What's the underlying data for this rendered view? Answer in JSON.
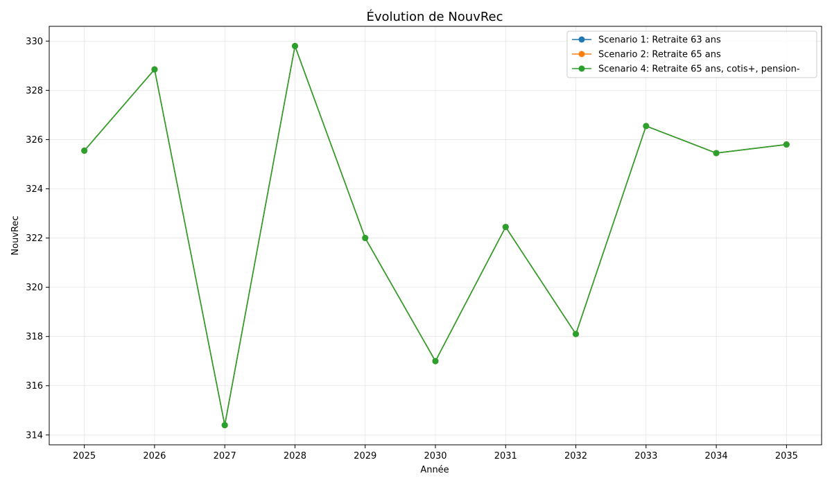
{
  "chart_data": {
    "type": "line",
    "title": "Évolution de NouvRec",
    "xlabel": "Année",
    "ylabel": "NouvRec",
    "x": [
      2025,
      2026,
      2027,
      2028,
      2029,
      2030,
      2031,
      2032,
      2033,
      2034,
      2035
    ],
    "x_ticks": [
      "2025",
      "2026",
      "2027",
      "2028",
      "2029",
      "2030",
      "2031",
      "2032",
      "2033",
      "2034",
      "2035"
    ],
    "y_ticks": [
      314,
      316,
      318,
      320,
      322,
      324,
      326,
      328,
      330
    ],
    "y_tick_labels": [
      "314",
      "316",
      "318",
      "320",
      "322",
      "324",
      "326",
      "328",
      "330"
    ],
    "xlim": [
      2024.5,
      2035.5
    ],
    "ylim": [
      313.6,
      330.6
    ],
    "grid": true,
    "legend_position": "top-right",
    "series": [
      {
        "name": "Scenario 1: Retraite 63 ans",
        "color": "#1f77b4",
        "values": [
          325.55,
          328.85,
          314.4,
          329.8,
          322.0,
          317.0,
          322.45,
          318.1,
          326.55,
          325.45,
          325.8
        ]
      },
      {
        "name": "Scenario 2: Retraite 65 ans",
        "color": "#ff7f0e",
        "values": [
          325.55,
          328.85,
          314.4,
          329.8,
          322.0,
          317.0,
          322.45,
          318.1,
          326.55,
          325.45,
          325.8
        ]
      },
      {
        "name": "Scenario 4: Retraite 65 ans, cotis+, pension-",
        "color": "#2ca02c",
        "values": [
          325.55,
          328.85,
          314.4,
          329.8,
          322.0,
          317.0,
          322.45,
          318.1,
          326.55,
          325.45,
          325.8
        ]
      }
    ]
  }
}
